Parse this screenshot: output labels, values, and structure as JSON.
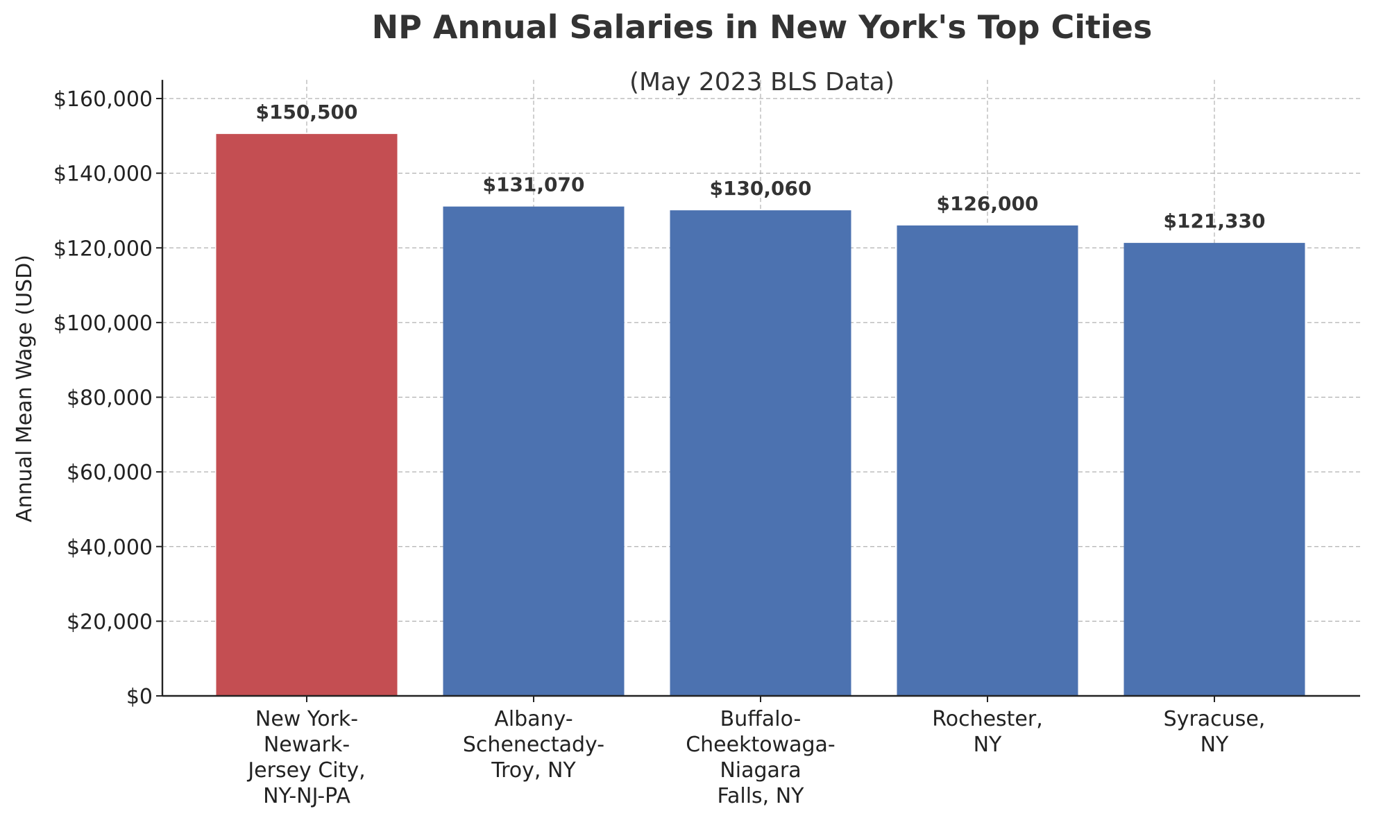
{
  "chart_data": {
    "type": "bar",
    "title": "NP Annual Salaries in New York's Top Cities",
    "subtitle": "(May 2023 BLS Data)",
    "xlabel": "",
    "ylabel": "Annual Mean Wage (USD)",
    "ylim": [
      0,
      165000
    ],
    "yticks": [
      0,
      20000,
      40000,
      60000,
      80000,
      100000,
      120000,
      140000,
      160000
    ],
    "ytick_labels": [
      "$0",
      "$20,000",
      "$40,000",
      "$60,000",
      "$80,000",
      "$100,000",
      "$120,000",
      "$140,000",
      "$160,000"
    ],
    "grid": true,
    "categories": [
      [
        "New York-",
        "Newark-",
        "Jersey City,",
        "NY-NJ-PA"
      ],
      [
        "Albany-",
        "Schenectady-",
        "Troy, NY"
      ],
      [
        "Buffalo-",
        "Cheektowaga-",
        "Niagara",
        "Falls, NY"
      ],
      [
        "Rochester,",
        "NY"
      ],
      [
        "Syracuse,",
        "NY"
      ]
    ],
    "values": [
      150500,
      131070,
      130060,
      126000,
      121330
    ],
    "value_labels": [
      "$150,500",
      "$131,070",
      "$130,060",
      "$126,000",
      "$121,330"
    ],
    "colors": [
      "#c44e52",
      "#4c72b0",
      "#4c72b0",
      "#4c72b0",
      "#4c72b0"
    ]
  }
}
